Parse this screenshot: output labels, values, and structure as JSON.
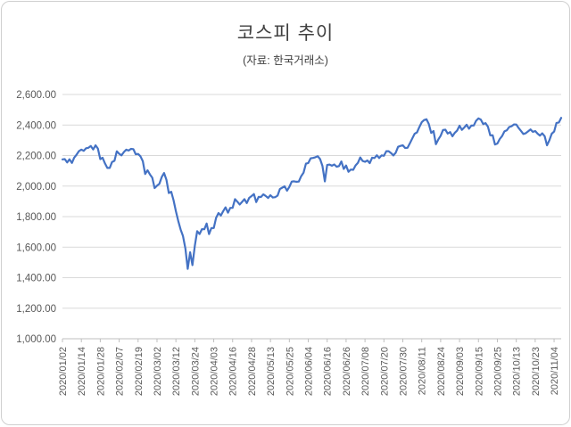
{
  "chart": {
    "title": "코스피 추이",
    "subtitle": "(자료: 한국거래소)"
  },
  "chart_data": {
    "type": "line",
    "title": "코스피 추이",
    "subtitle": "(자료: 한국거래소)",
    "series_name": "KOSPI",
    "legend": "none",
    "grid": true,
    "line_color": "#4472C4",
    "gridline_color": "#d9d9d9",
    "axis_line_color": "#bfbfbf",
    "axis_text_color": "#595959",
    "ylim": [
      1000,
      2600
    ],
    "ytick_interval": 200,
    "ytick_labels": [
      "1,000.00",
      "1,200.00",
      "1,400.00",
      "1,600.00",
      "1,800.00",
      "2,000.00",
      "2,200.00",
      "2,400.00",
      "2,600.00"
    ],
    "xtick_labels": [
      "2020/01/02",
      "2020/01/14",
      "2020/01/28",
      "2020/02/07",
      "2020/02/19",
      "2020/03/02",
      "2020/03/12",
      "2020/03/24",
      "2020/04/03",
      "2020/04/16",
      "2020/04/28",
      "2020/05/13",
      "2020/05/25",
      "2020/06/04",
      "2020/06/16",
      "2020/06/26",
      "2020/07/08",
      "2020/07/20",
      "2020/07/30",
      "2020/08/11",
      "2020/08/24",
      "2020/09/03",
      "2020/09/15",
      "2020/09/25",
      "2020/10/13",
      "2020/10/23",
      "2020/11/04"
    ],
    "x": [
      "2020/01/02",
      "2020/01/03",
      "2020/01/06",
      "2020/01/07",
      "2020/01/08",
      "2020/01/09",
      "2020/01/10",
      "2020/01/13",
      "2020/01/14",
      "2020/01/15",
      "2020/01/16",
      "2020/01/17",
      "2020/01/20",
      "2020/01/21",
      "2020/01/22",
      "2020/01/23",
      "2020/01/28",
      "2020/01/29",
      "2020/01/30",
      "2020/01/31",
      "2020/02/03",
      "2020/02/04",
      "2020/02/05",
      "2020/02/06",
      "2020/02/07",
      "2020/02/10",
      "2020/02/11",
      "2020/02/12",
      "2020/02/13",
      "2020/02/14",
      "2020/02/17",
      "2020/02/18",
      "2020/02/19",
      "2020/02/20",
      "2020/02/21",
      "2020/02/24",
      "2020/02/25",
      "2020/02/26",
      "2020/02/27",
      "2020/02/28",
      "2020/03/02",
      "2020/03/03",
      "2020/03/04",
      "2020/03/05",
      "2020/03/06",
      "2020/03/09",
      "2020/03/10",
      "2020/03/11",
      "2020/03/12",
      "2020/03/13",
      "2020/03/16",
      "2020/03/17",
      "2020/03/18",
      "2020/03/19",
      "2020/03/20",
      "2020/03/23",
      "2020/03/24",
      "2020/03/25",
      "2020/03/26",
      "2020/03/27",
      "2020/03/30",
      "2020/03/31",
      "2020/04/01",
      "2020/04/02",
      "2020/04/03",
      "2020/04/06",
      "2020/04/07",
      "2020/04/08",
      "2020/04/09",
      "2020/04/10",
      "2020/04/13",
      "2020/04/14",
      "2020/04/16",
      "2020/04/17",
      "2020/04/20",
      "2020/04/21",
      "2020/04/22",
      "2020/04/23",
      "2020/04/24",
      "2020/04/27",
      "2020/04/28",
      "2020/04/29",
      "2020/05/04",
      "2020/05/06",
      "2020/05/07",
      "2020/05/08",
      "2020/05/11",
      "2020/05/12",
      "2020/05/13",
      "2020/05/14",
      "2020/05/15",
      "2020/05/18",
      "2020/05/19",
      "2020/05/20",
      "2020/05/21",
      "2020/05/22",
      "2020/05/25",
      "2020/05/26",
      "2020/05/27",
      "2020/05/28",
      "2020/05/29",
      "2020/06/01",
      "2020/06/02",
      "2020/06/03",
      "2020/06/04",
      "2020/06/05",
      "2020/06/08",
      "2020/06/09",
      "2020/06/10",
      "2020/06/11",
      "2020/06/12",
      "2020/06/15",
      "2020/06/16",
      "2020/06/17",
      "2020/06/18",
      "2020/06/19",
      "2020/06/22",
      "2020/06/23",
      "2020/06/24",
      "2020/06/25",
      "2020/06/26",
      "2020/06/29",
      "2020/06/30",
      "2020/07/01",
      "2020/07/02",
      "2020/07/03",
      "2020/07/06",
      "2020/07/07",
      "2020/07/08",
      "2020/07/09",
      "2020/07/10",
      "2020/07/13",
      "2020/07/14",
      "2020/07/15",
      "2020/07/16",
      "2020/07/17",
      "2020/07/20",
      "2020/07/21",
      "2020/07/22",
      "2020/07/23",
      "2020/07/24",
      "2020/07/27",
      "2020/07/28",
      "2020/07/29",
      "2020/07/30",
      "2020/07/31",
      "2020/08/03",
      "2020/08/04",
      "2020/08/05",
      "2020/08/06",
      "2020/08/07",
      "2020/08/10",
      "2020/08/11",
      "2020/08/12",
      "2020/08/13",
      "2020/08/14",
      "2020/08/18",
      "2020/08/19",
      "2020/08/20",
      "2020/08/21",
      "2020/08/24",
      "2020/08/25",
      "2020/08/26",
      "2020/08/27",
      "2020/08/28",
      "2020/08/31",
      "2020/09/01",
      "2020/09/02",
      "2020/09/03",
      "2020/09/04",
      "2020/09/07",
      "2020/09/08",
      "2020/09/09",
      "2020/09/10",
      "2020/09/11",
      "2020/09/14",
      "2020/09/15",
      "2020/09/16",
      "2020/09/17",
      "2020/09/18",
      "2020/09/21",
      "2020/09/22",
      "2020/09/23",
      "2020/09/24",
      "2020/09/25",
      "2020/09/28",
      "2020/09/29",
      "2020/10/05",
      "2020/10/06",
      "2020/10/07",
      "2020/10/08",
      "2020/10/12",
      "2020/10/13",
      "2020/10/14",
      "2020/10/15",
      "2020/10/16",
      "2020/10/19",
      "2020/10/20",
      "2020/10/21",
      "2020/10/22",
      "2020/10/23",
      "2020/10/26",
      "2020/10/27",
      "2020/10/28",
      "2020/10/29",
      "2020/10/30",
      "2020/11/02",
      "2020/11/03",
      "2020/11/04",
      "2020/11/05",
      "2020/11/06",
      "2020/11/09"
    ],
    "values": [
      2175.17,
      2176.46,
      2155.07,
      2175.54,
      2151.31,
      2186.45,
      2206.39,
      2229.26,
      2238.88,
      2230.98,
      2248.05,
      2250.57,
      2262.64,
      2239.69,
      2267.25,
      2246.13,
      2176.72,
      2185.28,
      2148.0,
      2119.01,
      2118.88,
      2157.9,
      2165.63,
      2227.94,
      2211.95,
      2201.07,
      2223.12,
      2238.38,
      2232.96,
      2243.59,
      2242.17,
      2208.88,
      2210.34,
      2195.5,
      2162.84,
      2079.04,
      2103.61,
      2076.77,
      2054.89,
      1987.01,
      2002.51,
      2014.15,
      2059.33,
      2085.26,
      2040.22,
      1954.77,
      1962.93,
      1908.27,
      1834.33,
      1771.44,
      1714.86,
      1672.44,
      1591.2,
      1457.64,
      1566.15,
      1482.46,
      1609.97,
      1704.76,
      1686.24,
      1717.73,
      1717.12,
      1754.64,
      1685.46,
      1724.86,
      1725.44,
      1791.88,
      1823.6,
      1807.14,
      1836.21,
      1860.7,
      1825.76,
      1857.08,
      1857.07,
      1914.53,
      1898.36,
      1879.38,
      1896.15,
      1914.73,
      1889.01,
      1922.77,
      1934.09,
      1947.56,
      1895.37,
      1928.76,
      1928.61,
      1945.82,
      1935.4,
      1922.17,
      1940.42,
      1924.96,
      1927.28,
      1937.11,
      1980.61,
      1989.64,
      1998.31,
      1970.13,
      1994.6,
      2029.78,
      2031.2,
      2028.54,
      2029.6,
      2065.08,
      2087.19,
      2147.0,
      2151.18,
      2181.87,
      2184.29,
      2188.92,
      2195.69,
      2176.78,
      2132.3,
      2030.82,
      2138.05,
      2141.05,
      2133.48,
      2141.32,
      2126.73,
      2131.24,
      2161.51,
      2112.37,
      2134.65,
      2093.48,
      2108.33,
      2106.7,
      2135.37,
      2152.41,
      2187.93,
      2164.17,
      2158.88,
      2167.9,
      2150.25,
      2186.06,
      2183.61,
      2201.88,
      2183.76,
      2201.19,
      2198.2,
      2228.83,
      2228.66,
      2216.19,
      2200.44,
      2217.86,
      2256.99,
      2263.16,
      2267.01,
      2249.37,
      2251.04,
      2279.97,
      2311.86,
      2342.61,
      2351.67,
      2386.38,
      2418.67,
      2432.35,
      2437.53,
      2407.49,
      2348.24,
      2360.54,
      2274.22,
      2304.59,
      2329.83,
      2366.73,
      2369.32,
      2344.45,
      2353.8,
      2326.17,
      2349.55,
      2364.37,
      2395.9,
      2368.25,
      2384.22,
      2401.91,
      2375.81,
      2396.48,
      2396.69,
      2427.91,
      2443.58,
      2435.92,
      2406.17,
      2412.4,
      2389.39,
      2332.59,
      2333.24,
      2272.7,
      2278.79,
      2308.08,
      2327.89,
      2358.0,
      2365.9,
      2386.94,
      2391.96,
      2403.73,
      2403.15,
      2380.48,
      2361.21,
      2341.53,
      2346.74,
      2358.41,
      2370.86,
      2355.05,
      2360.81,
      2343.91,
      2330.84,
      2345.26,
      2326.67,
      2267.15,
      2300.16,
      2343.31,
      2357.32,
      2413.79,
      2416.5,
      2447.2
    ]
  }
}
